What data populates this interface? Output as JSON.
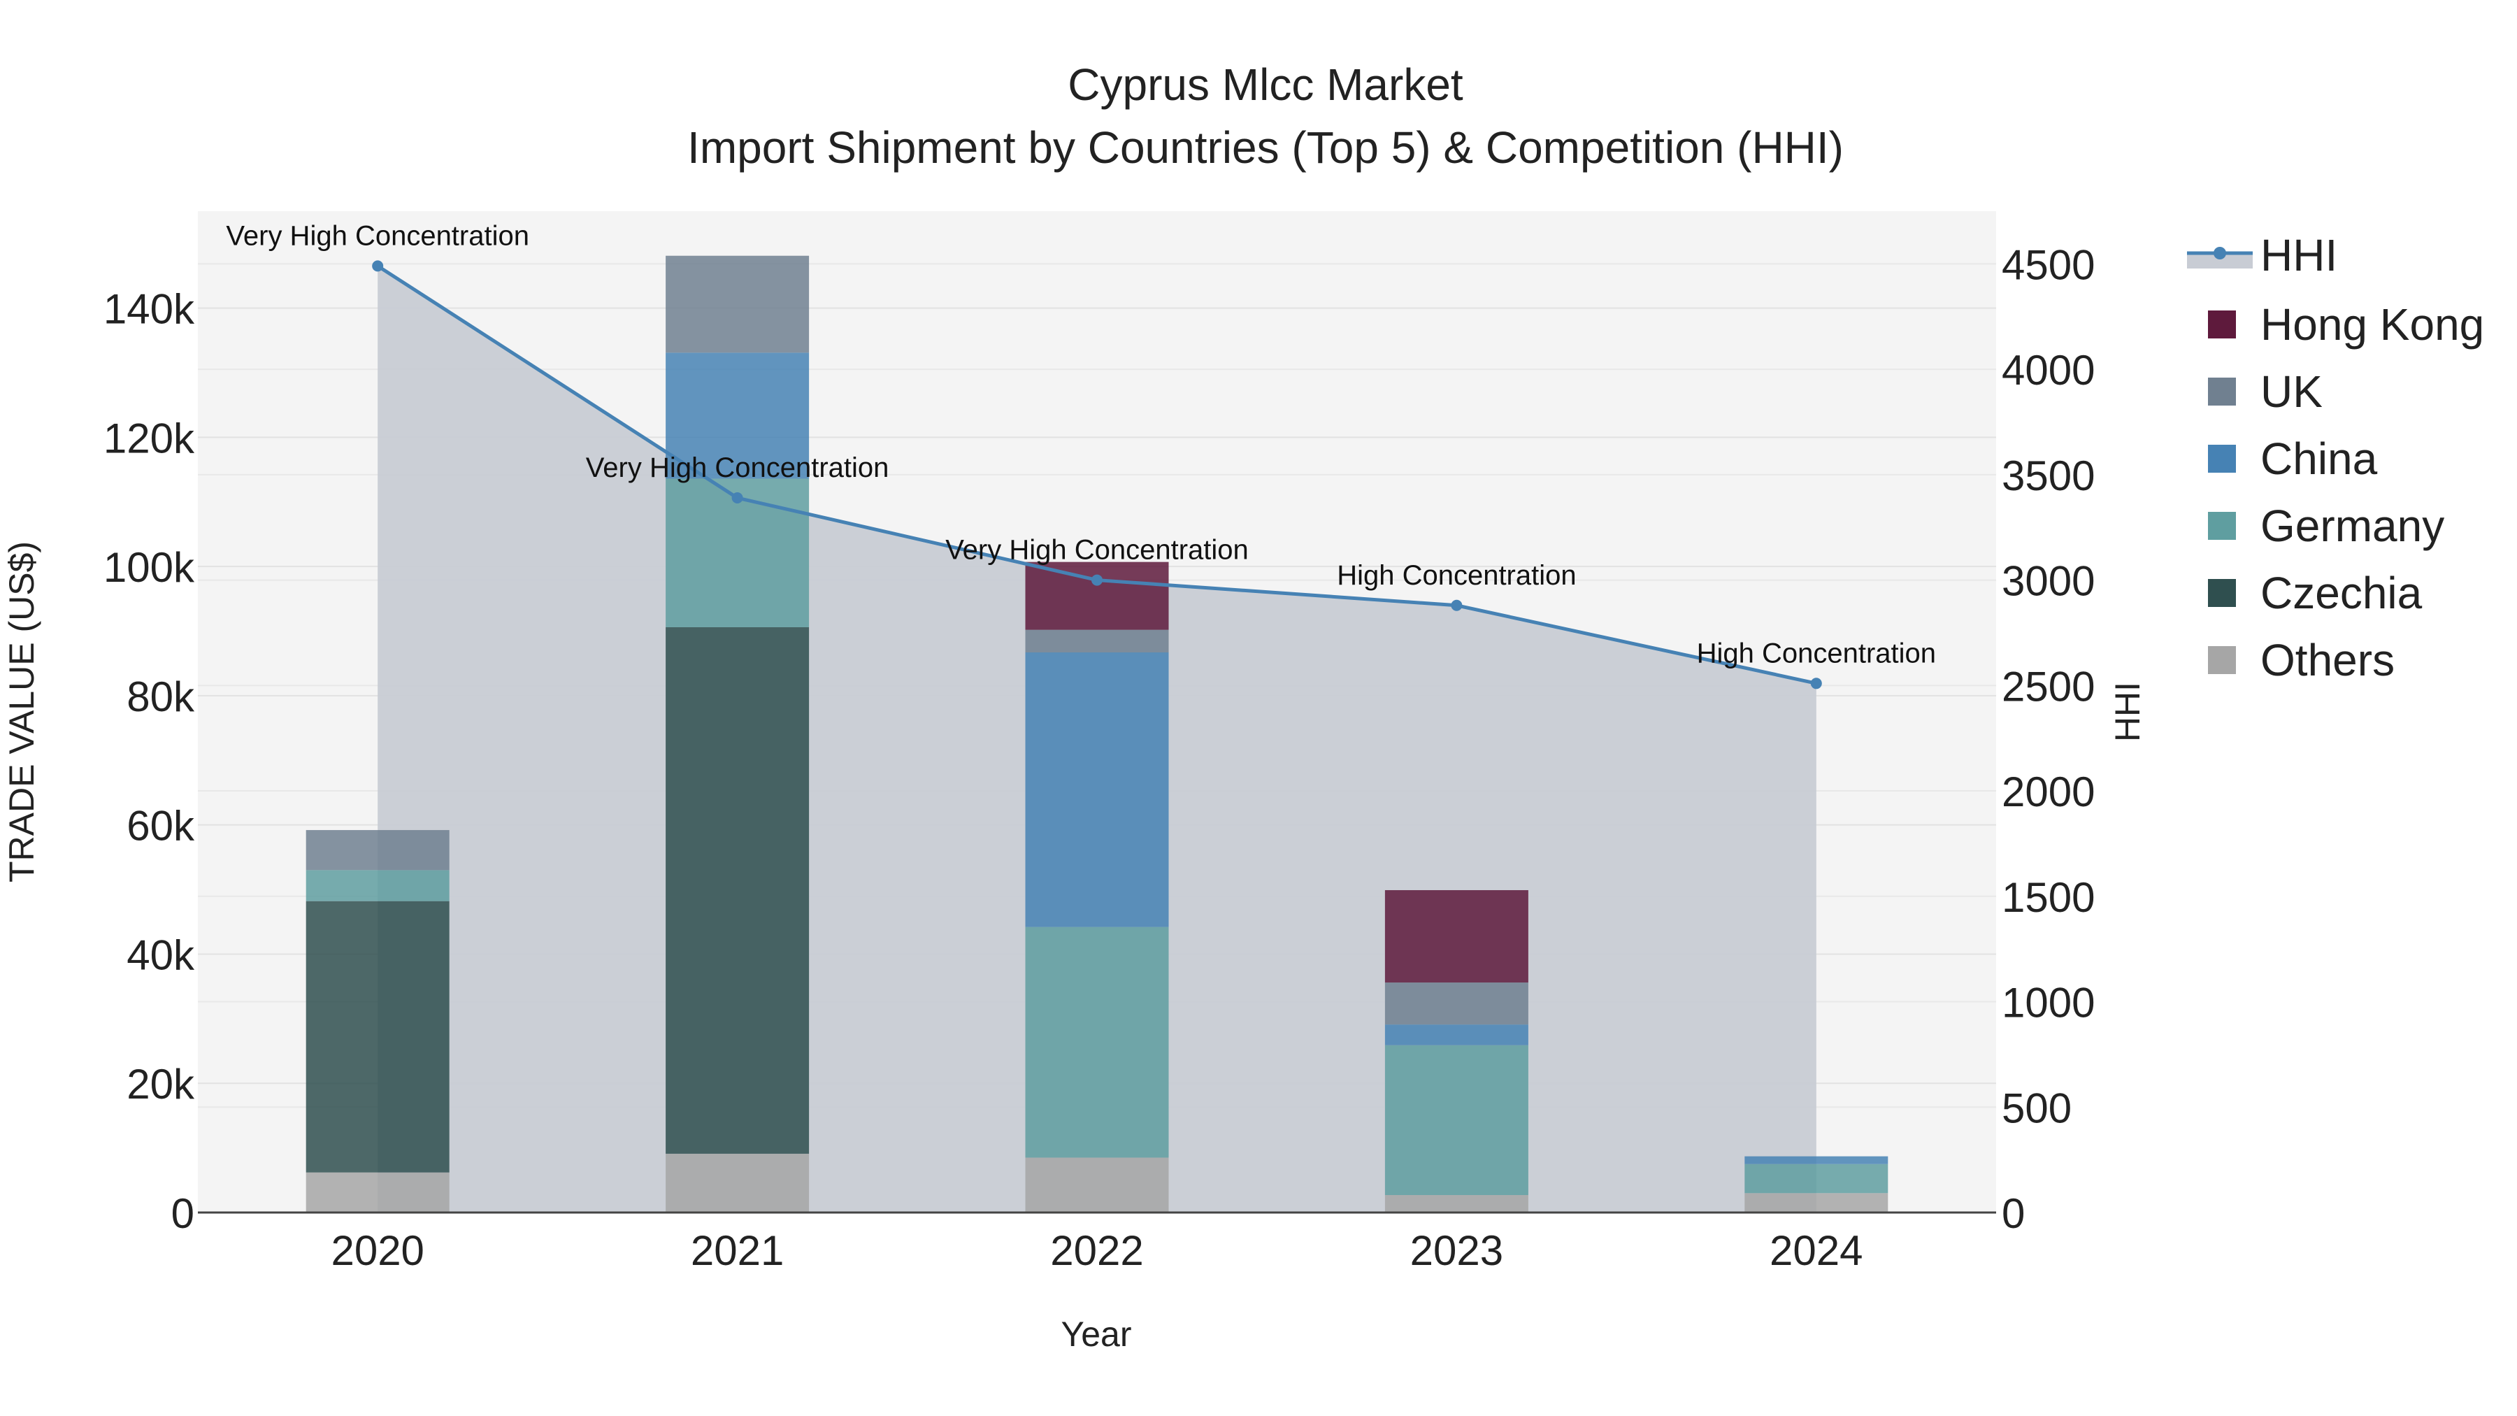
{
  "chart_data": {
    "type": "bar",
    "title": "Cyprus Mlcc Market",
    "subtitle": "Import Shipment by Countries (Top 5) & Competition (HHI)",
    "xlabel": "Year",
    "ylabel": "TRADE VALUE (US$)",
    "y2label": "HHI",
    "categories": [
      "2020",
      "2021",
      "2022",
      "2023",
      "2024"
    ],
    "ylim": [
      0,
      155000
    ],
    "y2lim": [
      0,
      4750
    ],
    "yticks": [
      0,
      20000,
      40000,
      60000,
      80000,
      100000,
      120000,
      140000
    ],
    "ytick_labels": [
      "0",
      "20k",
      "40k",
      "60k",
      "80k",
      "100k",
      "120k",
      "140k"
    ],
    "y2ticks": [
      0,
      500,
      1000,
      1500,
      2000,
      2500,
      3000,
      3500,
      4000,
      4500
    ],
    "y2tick_labels": [
      "0",
      "500",
      "1000",
      "1500",
      "2000",
      "2500",
      "3000",
      "3500",
      "4000",
      "4500"
    ],
    "series": [
      {
        "name": "Others",
        "color": "#a6a6a6",
        "values": [
          6200,
          9100,
          8500,
          2700,
          3000
        ]
      },
      {
        "name": "Czechia",
        "color": "#2f4f4f",
        "values": [
          42000,
          81500,
          0,
          0,
          0
        ]
      },
      {
        "name": "Germany",
        "color": "#5f9ea0",
        "values": [
          4800,
          23000,
          35700,
          23200,
          4500
        ]
      },
      {
        "name": "China",
        "color": "#4682b4",
        "values": [
          0,
          19500,
          42500,
          3200,
          1200
        ]
      },
      {
        "name": "UK",
        "color": "#708090",
        "values": [
          6200,
          15000,
          3500,
          6500,
          0
        ]
      },
      {
        "name": "Hong Kong",
        "color": "#5e1a3c",
        "values": [
          0,
          0,
          10500,
          14300,
          0
        ]
      }
    ],
    "legend_order": [
      "Hong Kong",
      "UK",
      "China",
      "Germany",
      "Czechia",
      "Others"
    ],
    "hhi": {
      "name": "HHI",
      "color": "#4682b4",
      "fill_color": "#c8ccd4",
      "values": [
        4490,
        3390,
        3000,
        2880,
        2510
      ],
      "labels": [
        "Very High Concentration",
        "Very High Concentration",
        "Very High Concentration",
        "High Concentration",
        "High Concentration"
      ]
    },
    "legend_position": "right",
    "grid": true
  }
}
